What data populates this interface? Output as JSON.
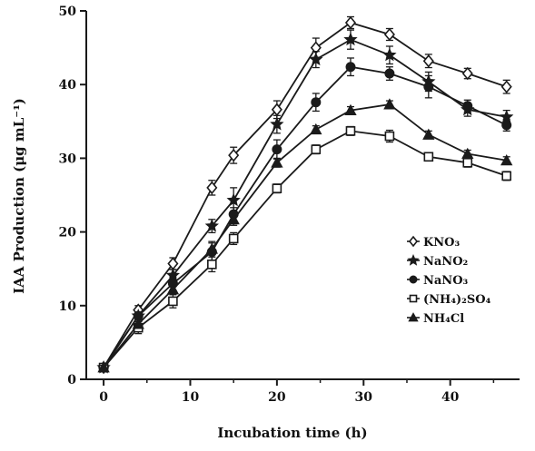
{
  "chart_data": {
    "type": "line",
    "title": "",
    "xlabel": "Incubation time (h)",
    "ylabel": "IAA Production (μg mL⁻¹)",
    "xlim": [
      -2,
      48
    ],
    "ylim": [
      0,
      50
    ],
    "xticks": [
      0,
      10,
      20,
      30,
      40
    ],
    "yticks": [
      0,
      10,
      20,
      30,
      40,
      50
    ],
    "grid": false,
    "legend_position": "center-right",
    "x": [
      0,
      4,
      8,
      12.5,
      15,
      20,
      24.5,
      28.5,
      33,
      37.5,
      42,
      46.5
    ],
    "series": [
      {
        "name": "KNO₃",
        "marker": "open-diamond",
        "values": [
          1.6,
          9.4,
          15.7,
          26.0,
          30.4,
          36.6,
          45.0,
          48.4,
          46.8,
          43.2,
          41.5,
          39.7
        ],
        "errors": [
          0.3,
          0.6,
          0.8,
          1.0,
          1.1,
          1.2,
          1.3,
          0.8,
          0.8,
          0.9,
          0.7,
          0.9
        ]
      },
      {
        "name": "NaNO₂",
        "marker": "star",
        "values": [
          1.6,
          8.6,
          14.1,
          20.8,
          24.3,
          34.6,
          43.4,
          46.1,
          44.0,
          40.4,
          36.6,
          35.6
        ],
        "errors": [
          0.3,
          0.5,
          0.8,
          0.9,
          1.7,
          1.2,
          1.1,
          1.3,
          1.2,
          1.3,
          0.9,
          0.9
        ]
      },
      {
        "name": "NaNO₃",
        "marker": "filled-circle",
        "values": [
          1.6,
          8.6,
          13.0,
          17.3,
          22.4,
          31.2,
          37.6,
          42.4,
          41.5,
          39.7,
          37.1,
          34.5
        ],
        "errors": [
          0.3,
          0.5,
          0.9,
          1.4,
          0.9,
          1.3,
          1.2,
          1.2,
          0.9,
          1.5,
          0.8,
          0.8
        ]
      },
      {
        "name": "(NH₄)₂SO₄",
        "marker": "open-square",
        "values": [
          1.6,
          7.0,
          10.6,
          15.6,
          19.1,
          25.9,
          31.2,
          33.7,
          33.0,
          30.2,
          29.4,
          27.6
        ],
        "errors": [
          0.3,
          0.8,
          0.9,
          1.0,
          0.8,
          0.6,
          0.6,
          0.6,
          0.8,
          0.5,
          0.6,
          0.6
        ]
      },
      {
        "name": "NH₄Cl",
        "marker": "filled-triangle",
        "values": [
          1.6,
          7.5,
          12.2,
          17.7,
          21.7,
          29.4,
          33.9,
          36.5,
          37.3,
          33.2,
          30.6,
          29.7
        ],
        "errors": [
          0.3,
          0.5,
          0.7,
          0.8,
          0.8,
          0.6,
          0.5,
          0.5,
          0.5,
          0.5,
          0.5,
          0.5
        ]
      }
    ],
    "colors": {
      "line": "#1a1a1a",
      "marker_fill_open": "#ffffff",
      "marker_fill_solid": "#1a1a1a"
    }
  }
}
